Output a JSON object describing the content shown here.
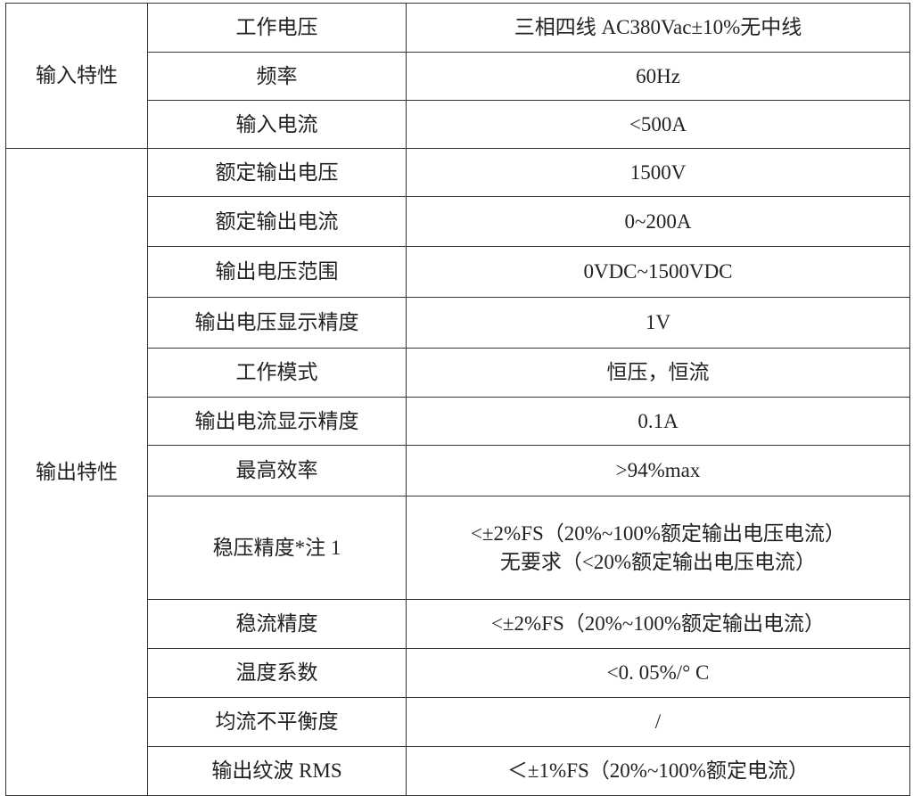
{
  "groups": [
    {
      "label": "输入特性",
      "rows": [
        {
          "param": "工作电压",
          "value": [
            "三相四线 AC380Vac±10%无中线"
          ]
        },
        {
          "param": "频率",
          "value": [
            "60Hz"
          ]
        },
        {
          "param": "输入电流",
          "value": [
            "<500A"
          ]
        }
      ]
    },
    {
      "label": "输出特性",
      "rows": [
        {
          "param": "额定输出电压",
          "value": [
            "1500V"
          ]
        },
        {
          "param": "额定输出电流",
          "value": [
            "0~200A"
          ]
        },
        {
          "param": "输出电压范围",
          "value": [
            "0VDC~1500VDC"
          ]
        },
        {
          "param": "输出电压显示精度",
          "value": [
            "1V"
          ]
        },
        {
          "param": "工作模式",
          "value": [
            "恒压，恒流"
          ]
        },
        {
          "param": "输出电流显示精度",
          "value": [
            "0.1A"
          ]
        },
        {
          "param": "最高效率",
          "value": [
            ">94%max"
          ]
        },
        {
          "param": "稳压精度*注 1",
          "value": [
            "<±2%FS（20%~100%额定输出电压电流）",
            "无要求（<20%额定输出电压电流）"
          ]
        },
        {
          "param": "稳流精度",
          "value": [
            "<±2%FS（20%~100%额定输出电流）"
          ]
        },
        {
          "param": "温度系数",
          "value": [
            "<0. 05%/° C"
          ]
        },
        {
          "param": "均流不平衡度",
          "value": [
            "/"
          ]
        },
        {
          "param": "输出纹波 RMS",
          "value": [
            "＜±1%FS（20%~100%额定电流）"
          ]
        }
      ]
    }
  ]
}
